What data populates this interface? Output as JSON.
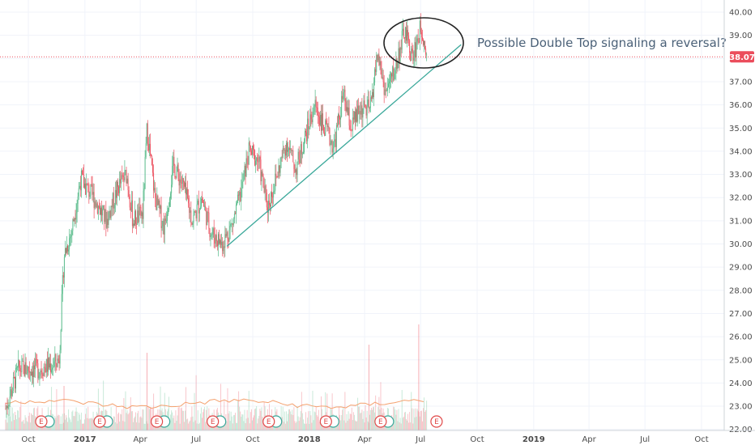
{
  "chart_data": {
    "type": "candlestick",
    "annotation": "Possible Double Top signaling a reversal?",
    "last_price": "38.07",
    "y_ticks": [
      "22.00",
      "23.00",
      "24.00",
      "25.00",
      "26.00",
      "27.00",
      "28.00",
      "29.00",
      "30.00",
      "31.00",
      "32.00",
      "33.00",
      "34.00",
      "35.00",
      "36.00",
      "37.00",
      "38.00",
      "39.00",
      "40.00"
    ],
    "ylim": [
      22.0,
      40.3
    ],
    "x_ticks": [
      {
        "label": "Oct",
        "year": false
      },
      {
        "label": "2017",
        "year": true
      },
      {
        "label": "Apr",
        "year": false
      },
      {
        "label": "Jul",
        "year": false
      },
      {
        "label": "Oct",
        "year": false
      },
      {
        "label": "2018",
        "year": true
      },
      {
        "label": "Apr",
        "year": false
      },
      {
        "label": "Jul",
        "year": false
      },
      {
        "label": "Oct",
        "year": false
      },
      {
        "label": "2019",
        "year": true
      },
      {
        "label": "Apr",
        "year": false
      },
      {
        "label": "Jul",
        "year": false
      },
      {
        "label": "Oct",
        "year": false
      }
    ],
    "trendline": {
      "from": [
        "2017-08-20",
        29.9
      ],
      "to": [
        "2018-09-05",
        38.6
      ]
    },
    "earnings_marker_label": "E",
    "earnings_count": 8,
    "price_path": [
      [
        "2016-08-25",
        22.9
      ],
      [
        "2016-09-15",
        24.6
      ],
      [
        "2016-10-15",
        24.6
      ],
      [
        "2016-11-10",
        24.8
      ],
      [
        "2016-11-20",
        25.0
      ],
      [
        "2016-11-28",
        29.5
      ],
      [
        "2016-12-10",
        30.5
      ],
      [
        "2016-12-25",
        32.8
      ],
      [
        "2017-01-15",
        32.0
      ],
      [
        "2017-02-05",
        31.0
      ],
      [
        "2017-02-25",
        32.5
      ],
      [
        "2017-03-10",
        33.0
      ],
      [
        "2017-03-20",
        31.0
      ],
      [
        "2017-04-05",
        31.3
      ],
      [
        "2017-04-12",
        35.0
      ],
      [
        "2017-04-25",
        32.0
      ],
      [
        "2017-05-10",
        30.7
      ],
      [
        "2017-05-25",
        33.4
      ],
      [
        "2017-06-10",
        32.5
      ],
      [
        "2017-06-25",
        31.0
      ],
      [
        "2017-07-10",
        32.0
      ],
      [
        "2017-07-25",
        30.5
      ],
      [
        "2017-08-12",
        30.0
      ],
      [
        "2017-08-28",
        30.8
      ],
      [
        "2017-09-10",
        32.0
      ],
      [
        "2017-09-25",
        34.0
      ],
      [
        "2017-10-10",
        33.6
      ],
      [
        "2017-10-25",
        31.6
      ],
      [
        "2017-11-10",
        33.0
      ],
      [
        "2017-11-25",
        34.4
      ],
      [
        "2017-12-10",
        33.2
      ],
      [
        "2017-12-25",
        34.6
      ],
      [
        "2018-01-10",
        36.0
      ],
      [
        "2018-01-25",
        35.0
      ],
      [
        "2018-02-10",
        34.2
      ],
      [
        "2018-02-25",
        36.4
      ],
      [
        "2018-03-10",
        35.0
      ],
      [
        "2018-03-25",
        35.8
      ],
      [
        "2018-04-10",
        35.8
      ],
      [
        "2018-04-22",
        38.2
      ],
      [
        "2018-05-05",
        36.5
      ],
      [
        "2018-05-20",
        37.5
      ],
      [
        "2018-06-05",
        39.2
      ],
      [
        "2018-06-18",
        38.0
      ],
      [
        "2018-07-02",
        39.4
      ],
      [
        "2018-07-12",
        38.1
      ]
    ],
    "grid": true
  }
}
